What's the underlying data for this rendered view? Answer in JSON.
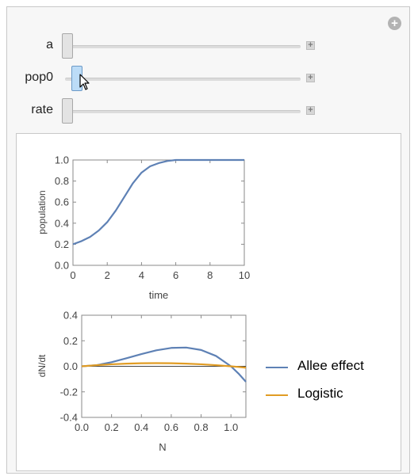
{
  "controls": [
    {
      "name": "a",
      "label": "a",
      "value": 0.0,
      "active": false
    },
    {
      "name": "pop0",
      "label": "pop0",
      "value": 0.04,
      "active": true
    },
    {
      "name": "rate",
      "label": "rate",
      "value": 0.0,
      "active": false
    }
  ],
  "plus_symbol": "+",
  "corner_plus_symbol": "+",
  "colors": {
    "allee": "#5e81b5",
    "logistic": "#e19c24"
  },
  "plots": {
    "top": {
      "xlabel": "time",
      "ylabel": "population",
      "xticks": [
        "0",
        "2",
        "4",
        "6",
        "8",
        "10"
      ],
      "yticks": [
        "0.0",
        "0.2",
        "0.4",
        "0.6",
        "0.8",
        "1.0"
      ]
    },
    "bottom": {
      "xlabel": "N",
      "ylabel": "dN/dt",
      "xticks": [
        "0.0",
        "0.2",
        "0.4",
        "0.6",
        "0.8",
        "1.0"
      ],
      "yticks": [
        "-0.4",
        "-0.2",
        "0.0",
        "0.2",
        "0.4"
      ]
    }
  },
  "legend": [
    {
      "label": "Allee effect",
      "color_key": "allee"
    },
    {
      "label": "Logistic",
      "color_key": "logistic"
    }
  ],
  "chart_data": [
    {
      "type": "line",
      "xlabel": "time",
      "ylabel": "population",
      "xlim": [
        0,
        10
      ],
      "ylim": [
        0,
        1
      ],
      "series": [
        {
          "x": [
            0,
            0.5,
            1,
            1.5,
            2,
            2.5,
            3,
            3.5,
            4,
            4.5,
            5,
            5.5,
            6,
            7,
            8,
            9,
            10
          ],
          "values": [
            0.2,
            0.23,
            0.27,
            0.33,
            0.41,
            0.52,
            0.65,
            0.78,
            0.88,
            0.94,
            0.97,
            0.99,
            1.0,
            1.0,
            1.0,
            1.0,
            1.0
          ]
        }
      ]
    },
    {
      "type": "line",
      "xlabel": "N",
      "ylabel": "dN/dt",
      "xlim": [
        0,
        1.1
      ],
      "ylim": [
        -0.4,
        0.4
      ],
      "series": [
        {
          "name": "Allee effect",
          "x": [
            0,
            0.1,
            0.2,
            0.3,
            0.4,
            0.5,
            0.6,
            0.7,
            0.8,
            0.9,
            1.0,
            1.05,
            1.1
          ],
          "values": [
            0,
            0.009,
            0.032,
            0.063,
            0.096,
            0.125,
            0.144,
            0.147,
            0.128,
            0.081,
            0,
            -0.056,
            -0.121
          ]
        },
        {
          "name": "Logistic",
          "x": [
            0,
            0.1,
            0.2,
            0.3,
            0.4,
            0.5,
            0.6,
            0.7,
            0.8,
            0.9,
            1.0,
            1.05,
            1.1
          ],
          "values": [
            0,
            0.009,
            0.016,
            0.021,
            0.024,
            0.025,
            0.024,
            0.021,
            0.016,
            0.009,
            0,
            -0.005,
            -0.011
          ]
        }
      ]
    }
  ]
}
